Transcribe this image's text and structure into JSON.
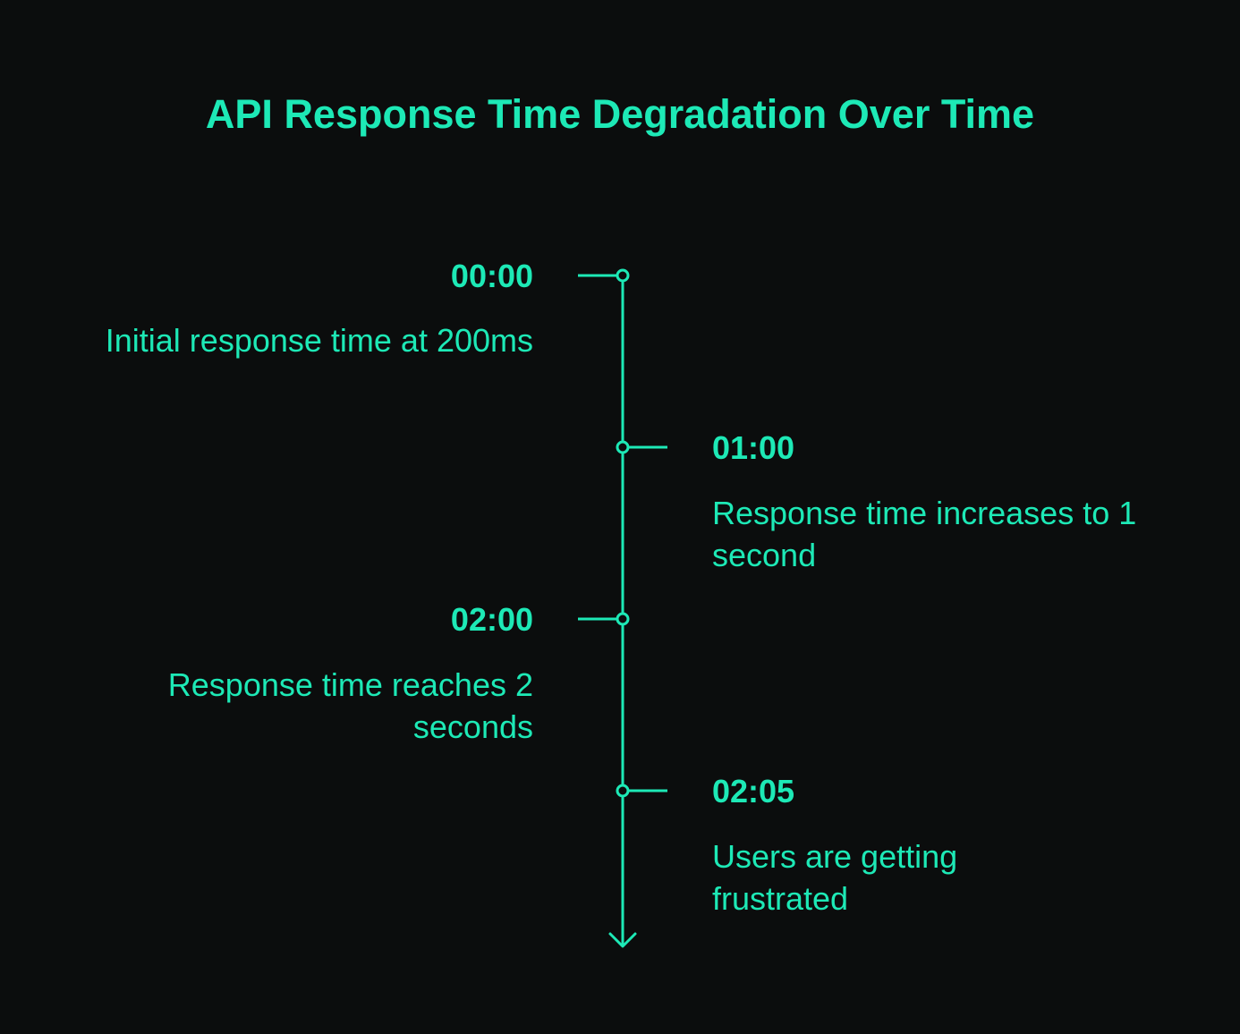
{
  "title": "API Response Time Degradation Over Time",
  "colors": {
    "background": "#0b0d0d",
    "accent": "#1de9b6"
  },
  "events": [
    {
      "time": "00:00",
      "description": "Initial response time at 200ms",
      "side": "left"
    },
    {
      "time": "01:00",
      "description": "Response time increases to 1 second",
      "side": "right"
    },
    {
      "time": "02:00",
      "description": "Response time reaches 2 seconds",
      "side": "left"
    },
    {
      "time": "02:05",
      "description": "Users are getting frustrated",
      "side": "right"
    }
  ]
}
